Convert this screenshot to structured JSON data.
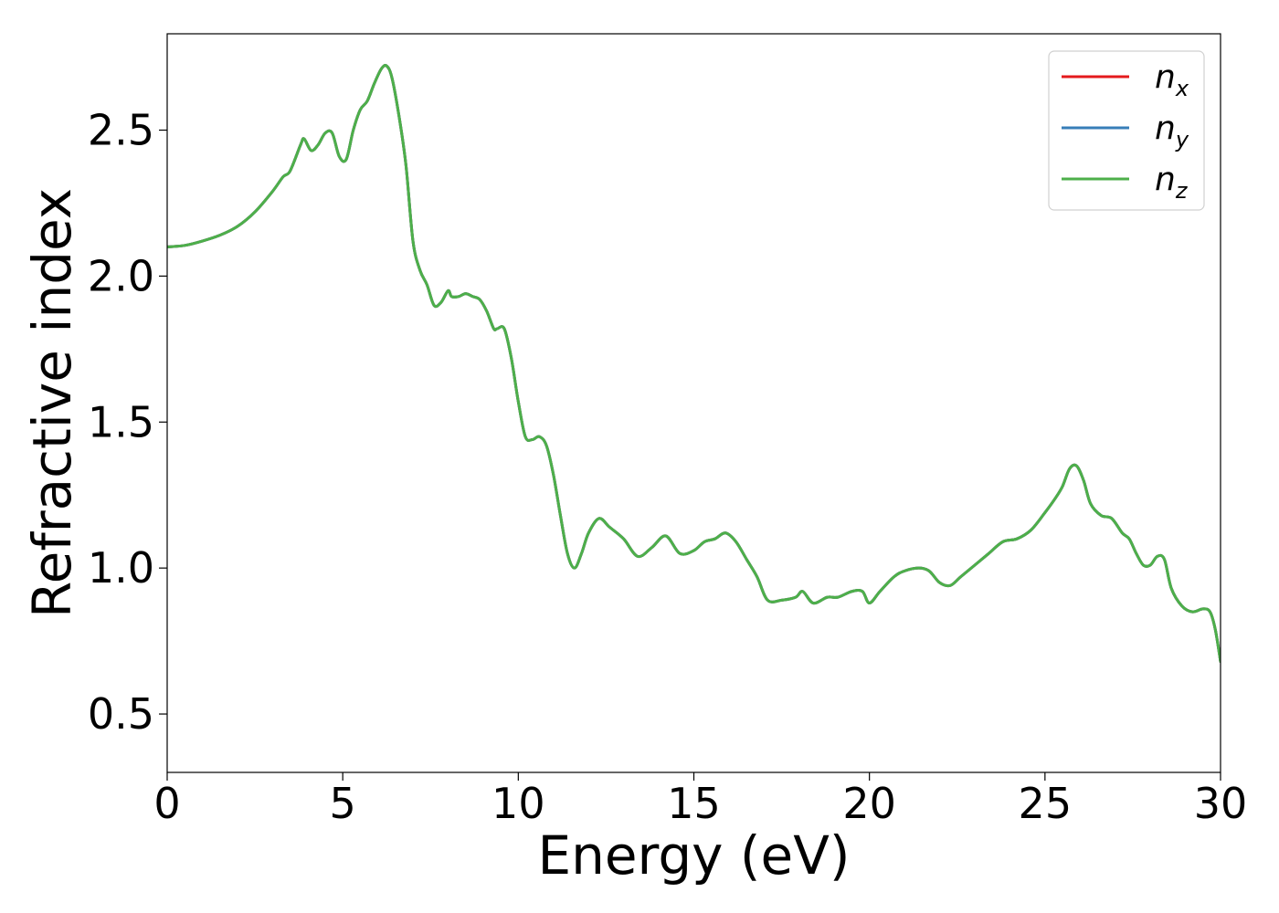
{
  "chart_data": {
    "type": "line",
    "title": "",
    "xlabel": "Energy (eV)",
    "ylabel": "Refractive index",
    "xlim": [
      0,
      30
    ],
    "ylim": [
      0.3,
      2.83
    ],
    "xticks": [
      0,
      5,
      10,
      15,
      20,
      25,
      30
    ],
    "xtick_labels": [
      "0",
      "5",
      "10",
      "15",
      "20",
      "25",
      "30"
    ],
    "yticks": [
      0.5,
      1.0,
      1.5,
      2.0,
      2.5
    ],
    "ytick_labels": [
      "0.5",
      "1.0",
      "1.5",
      "2.0",
      "2.5"
    ],
    "grid": false,
    "legend_position": "top-right",
    "x": [
      0,
      0.5,
      1,
      1.5,
      2,
      2.5,
      3,
      3.3,
      3.5,
      3.8,
      3.9,
      4.1,
      4.3,
      4.5,
      4.7,
      4.9,
      5.1,
      5.3,
      5.5,
      5.7,
      5.9,
      6.1,
      6.25,
      6.4,
      6.6,
      6.8,
      7.0,
      7.2,
      7.4,
      7.6,
      7.8,
      8.0,
      8.1,
      8.3,
      8.5,
      8.7,
      8.9,
      9.1,
      9.3,
      9.4,
      9.6,
      9.8,
      10.0,
      10.2,
      10.4,
      10.6,
      10.8,
      11.0,
      11.2,
      11.4,
      11.6,
      11.8,
      12.0,
      12.3,
      12.6,
      13.0,
      13.4,
      13.8,
      14.2,
      14.6,
      15.0,
      15.3,
      15.6,
      15.9,
      16.2,
      16.5,
      16.8,
      17.1,
      17.5,
      17.9,
      18.1,
      18.4,
      18.8,
      19.1,
      19.5,
      19.8,
      20.0,
      20.3,
      20.7,
      21.0,
      21.4,
      21.7,
      22.0,
      22.3,
      22.6,
      23.0,
      23.4,
      23.8,
      24.2,
      24.6,
      25.0,
      25.3,
      25.5,
      25.7,
      25.9,
      26.1,
      26.3,
      26.6,
      26.9,
      27.2,
      27.4,
      27.6,
      27.8,
      28.0,
      28.2,
      28.4,
      28.6,
      28.9,
      29.2,
      29.5,
      29.7,
      29.85,
      30.0
    ],
    "series": [
      {
        "name": "n_x",
        "label_base": "n",
        "label_sub": "x",
        "color": "#e41a1c",
        "values": [
          2.1,
          2.105,
          2.12,
          2.14,
          2.17,
          2.22,
          2.29,
          2.34,
          2.36,
          2.45,
          2.47,
          2.43,
          2.45,
          2.49,
          2.49,
          2.41,
          2.4,
          2.5,
          2.57,
          2.6,
          2.66,
          2.71,
          2.72,
          2.68,
          2.55,
          2.38,
          2.12,
          2.02,
          1.97,
          1.9,
          1.91,
          1.95,
          1.93,
          1.93,
          1.94,
          1.93,
          1.92,
          1.88,
          1.82,
          1.82,
          1.82,
          1.72,
          1.57,
          1.45,
          1.44,
          1.45,
          1.42,
          1.32,
          1.18,
          1.05,
          1.0,
          1.05,
          1.12,
          1.17,
          1.14,
          1.1,
          1.04,
          1.07,
          1.11,
          1.05,
          1.06,
          1.09,
          1.1,
          1.12,
          1.09,
          1.03,
          0.97,
          0.89,
          0.89,
          0.9,
          0.92,
          0.88,
          0.9,
          0.9,
          0.92,
          0.92,
          0.88,
          0.92,
          0.97,
          0.99,
          1.0,
          0.99,
          0.95,
          0.94,
          0.97,
          1.01,
          1.05,
          1.09,
          1.1,
          1.13,
          1.19,
          1.24,
          1.28,
          1.34,
          1.35,
          1.3,
          1.22,
          1.18,
          1.17,
          1.12,
          1.1,
          1.05,
          1.01,
          1.01,
          1.04,
          1.03,
          0.93,
          0.87,
          0.85,
          0.86,
          0.85,
          0.79,
          0.68
        ]
      },
      {
        "name": "n_y",
        "label_base": "n",
        "label_sub": "y",
        "color": "#377eb8",
        "values": [
          2.1,
          2.105,
          2.12,
          2.14,
          2.17,
          2.22,
          2.29,
          2.34,
          2.36,
          2.45,
          2.47,
          2.43,
          2.45,
          2.49,
          2.49,
          2.41,
          2.4,
          2.5,
          2.57,
          2.6,
          2.66,
          2.71,
          2.72,
          2.68,
          2.55,
          2.38,
          2.12,
          2.02,
          1.97,
          1.9,
          1.91,
          1.95,
          1.93,
          1.93,
          1.94,
          1.93,
          1.92,
          1.88,
          1.82,
          1.82,
          1.82,
          1.72,
          1.57,
          1.45,
          1.44,
          1.45,
          1.42,
          1.32,
          1.18,
          1.05,
          1.0,
          1.05,
          1.12,
          1.17,
          1.14,
          1.1,
          1.04,
          1.07,
          1.11,
          1.05,
          1.06,
          1.09,
          1.1,
          1.12,
          1.09,
          1.03,
          0.97,
          0.89,
          0.89,
          0.9,
          0.92,
          0.88,
          0.9,
          0.9,
          0.92,
          0.92,
          0.88,
          0.92,
          0.97,
          0.99,
          1.0,
          0.99,
          0.95,
          0.94,
          0.97,
          1.01,
          1.05,
          1.09,
          1.1,
          1.13,
          1.19,
          1.24,
          1.28,
          1.34,
          1.35,
          1.3,
          1.22,
          1.18,
          1.17,
          1.12,
          1.1,
          1.05,
          1.01,
          1.01,
          1.04,
          1.03,
          0.93,
          0.87,
          0.85,
          0.86,
          0.85,
          0.79,
          0.68
        ]
      },
      {
        "name": "n_z",
        "label_base": "n",
        "label_sub": "z",
        "color": "#4daf4a",
        "values": [
          2.1,
          2.105,
          2.12,
          2.14,
          2.17,
          2.22,
          2.29,
          2.34,
          2.36,
          2.45,
          2.47,
          2.43,
          2.45,
          2.49,
          2.49,
          2.41,
          2.4,
          2.5,
          2.57,
          2.6,
          2.66,
          2.71,
          2.72,
          2.68,
          2.55,
          2.38,
          2.12,
          2.02,
          1.97,
          1.9,
          1.91,
          1.95,
          1.93,
          1.93,
          1.94,
          1.93,
          1.92,
          1.88,
          1.82,
          1.82,
          1.82,
          1.72,
          1.57,
          1.45,
          1.44,
          1.45,
          1.42,
          1.32,
          1.18,
          1.05,
          1.0,
          1.05,
          1.12,
          1.17,
          1.14,
          1.1,
          1.04,
          1.07,
          1.11,
          1.05,
          1.06,
          1.09,
          1.1,
          1.12,
          1.09,
          1.03,
          0.97,
          0.89,
          0.89,
          0.9,
          0.92,
          0.88,
          0.9,
          0.9,
          0.92,
          0.92,
          0.88,
          0.92,
          0.97,
          0.99,
          1.0,
          0.99,
          0.95,
          0.94,
          0.97,
          1.01,
          1.05,
          1.09,
          1.1,
          1.13,
          1.19,
          1.24,
          1.28,
          1.34,
          1.35,
          1.3,
          1.22,
          1.18,
          1.17,
          1.12,
          1.1,
          1.05,
          1.01,
          1.01,
          1.04,
          1.03,
          0.93,
          0.87,
          0.85,
          0.86,
          0.85,
          0.79,
          0.68
        ]
      }
    ]
  }
}
